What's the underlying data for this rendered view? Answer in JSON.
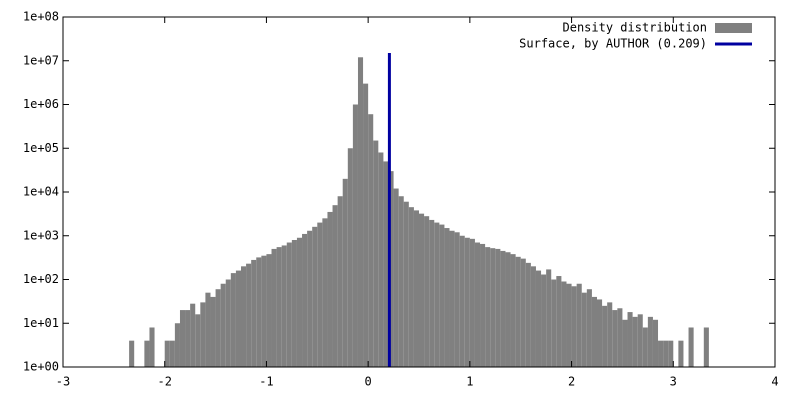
{
  "chart_data": {
    "type": "histogram",
    "series": [
      {
        "name": "Density distribution",
        "color": "#808080",
        "values": [
          4,
          0,
          0,
          4,
          8,
          0,
          0,
          4,
          4,
          10,
          20,
          20,
          28,
          16,
          30,
          50,
          40,
          60,
          80,
          100,
          140,
          160,
          200,
          230,
          280,
          320,
          350,
          380,
          500,
          550,
          600,
          700,
          800,
          900,
          1100,
          1300,
          1600,
          2000,
          2500,
          3500,
          5000,
          8000,
          20000,
          100000,
          1000000,
          12000000,
          3000000,
          600000,
          150000,
          80000,
          50000,
          30000,
          12000,
          8000,
          6000,
          4500,
          3800,
          3200,
          2800,
          2300,
          2000,
          1800,
          1500,
          1300,
          1200,
          1000,
          900,
          850,
          700,
          650,
          550,
          520,
          500,
          450,
          420,
          380,
          330,
          300,
          240,
          200,
          160,
          130,
          170,
          100,
          120,
          90,
          80,
          70,
          80,
          50,
          60,
          40,
          35,
          25,
          30,
          20,
          22,
          12,
          18,
          14,
          16,
          8,
          14,
          12,
          4,
          4,
          4,
          0,
          4,
          0,
          8,
          0,
          0,
          8
        ]
      }
    ],
    "bins": [
      -2.35,
      -2.3,
      -2.25,
      -2.2,
      -2.15,
      -2.1,
      -2.05,
      -2,
      -1.95,
      -1.9,
      -1.85,
      -1.8,
      -1.75,
      -1.7,
      -1.65,
      -1.6,
      -1.55,
      -1.5,
      -1.45,
      -1.4,
      -1.35,
      -1.3,
      -1.25,
      -1.2,
      -1.15,
      -1.1,
      -1.05,
      -1,
      -0.95,
      -0.9,
      -0.85,
      -0.8,
      -0.75,
      -0.7,
      -0.65,
      -0.6,
      -0.55,
      -0.5,
      -0.45,
      -0.4,
      -0.35,
      -0.3,
      -0.25,
      -0.2,
      -0.15,
      -0.1,
      -0.05,
      0,
      0.05,
      0.1,
      0.15,
      0.2,
      0.25,
      0.3,
      0.35,
      0.4,
      0.45,
      0.5,
      0.55,
      0.6,
      0.65,
      0.7,
      0.75,
      0.8,
      0.85,
      0.9,
      0.95,
      1,
      1.05,
      1.1,
      1.15,
      1.2,
      1.25,
      1.3,
      1.35,
      1.4,
      1.45,
      1.5,
      1.55,
      1.6,
      1.65,
      1.7,
      1.75,
      1.8,
      1.85,
      1.9,
      1.95,
      2,
      2.05,
      2.1,
      2.15,
      2.2,
      2.25,
      2.3,
      2.35,
      2.4,
      2.45,
      2.5,
      2.55,
      2.6,
      2.65,
      2.7,
      2.75,
      2.8,
      2.85,
      2.9,
      2.95,
      3,
      3.05,
      3.1,
      3.15,
      3.2,
      3.25,
      3.3,
      3.35
    ],
    "vline": {
      "name": "Surface, by AUTHOR (0.209)",
      "color": "#0000a0",
      "x": 0.209,
      "y": [
        1,
        15000000
      ]
    },
    "log_y": true,
    "legend": "top-right",
    "xlim": [
      -3,
      4
    ],
    "xticks": [
      -3,
      -2,
      -1,
      0,
      1,
      2,
      3,
      4
    ],
    "ylim": [
      1,
      100000000
    ],
    "yticks": [
      {
        "value": 1,
        "label": "1e+00"
      },
      {
        "value": 10,
        "label": "1e+01"
      },
      {
        "value": 100,
        "label": "1e+02"
      },
      {
        "value": 1000,
        "label": "1e+03"
      },
      {
        "value": 10000,
        "label": "1e+04"
      },
      {
        "value": 100000,
        "label": "1e+05"
      },
      {
        "value": 1000000,
        "label": "1e+06"
      },
      {
        "value": 10000000,
        "label": "1e+07"
      },
      {
        "value": 100000000,
        "label": "1e+08"
      }
    ]
  }
}
